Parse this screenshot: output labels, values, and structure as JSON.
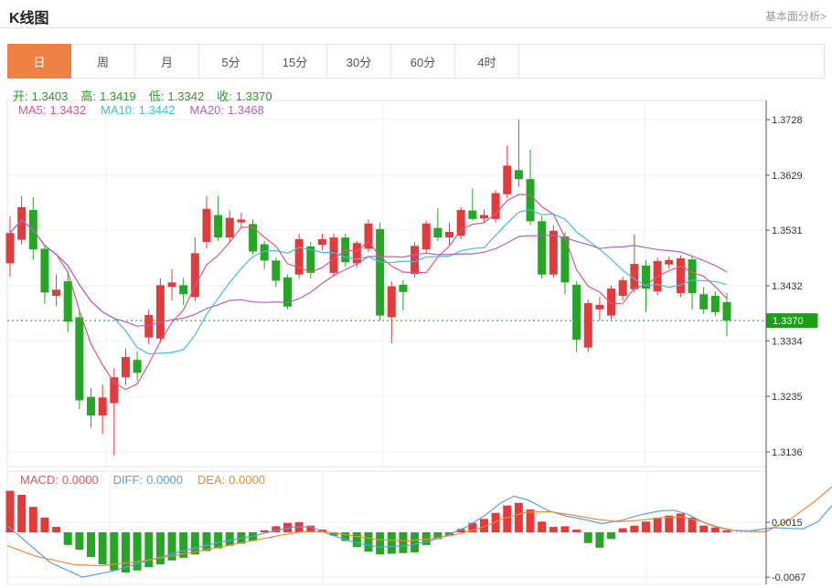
{
  "header": {
    "title": "K线图",
    "link": "基本面分析>"
  },
  "tabs": {
    "items": [
      {
        "key": "day",
        "label": "日",
        "selected": true
      },
      {
        "key": "week",
        "label": "周",
        "selected": false
      },
      {
        "key": "month",
        "label": "月",
        "selected": false
      },
      {
        "key": "5min",
        "label": "5分",
        "selected": false
      },
      {
        "key": "15min",
        "label": "15分",
        "selected": false
      },
      {
        "key": "30min",
        "label": "30分",
        "selected": false
      },
      {
        "key": "60min",
        "label": "60分",
        "selected": false
      },
      {
        "key": "4hour",
        "label": "4时",
        "selected": false
      }
    ]
  },
  "info": {
    "open_label": "开:",
    "open": "1.3403",
    "high_label": "高:",
    "high": "1.3419",
    "low_label": "低:",
    "low": "1.3342",
    "close_label": "收:",
    "close": "1.3370",
    "ma5_label": "MA5:",
    "ma5": "1.3432",
    "ma10_label": "MA10:",
    "ma10": "1.3442",
    "ma20_label": "MA20:",
    "ma20": "1.3468"
  },
  "macd_info": {
    "macd_label": "MACD:",
    "macd": "0.0000",
    "diff_label": "DIFF:",
    "diff": "0.0000",
    "dea_label": "DEA:",
    "dea": "0.0000"
  },
  "colors": {
    "up": "#e23b3b",
    "down": "#26a526",
    "ohlc_text": "#21a21f",
    "ma5": "#e8527d",
    "ma10": "#3fc0d8",
    "ma20": "#b25fc8",
    "macd_text": "#e25650",
    "diff": "#5aa0e0",
    "dea": "#f0882f",
    "accent": "#ee8144",
    "badge": "#18a018",
    "grid": "#efefef",
    "axis": "#555555",
    "label": "#333333",
    "dotted_zero": "#a8cce8"
  },
  "chart_data": {
    "type": "candlestick",
    "title": "K线图",
    "y_ticks": [
      "1.3728",
      "1.3629",
      "1.3531",
      "1.3432",
      "1.3334",
      "1.3235",
      "1.3136"
    ],
    "y_range": [
      1.3136,
      1.3728
    ],
    "current_price": "1.3370",
    "grid": true,
    "candles": [
      [
        1.3472,
        1.3556,
        1.3448,
        1.3526
      ],
      [
        1.3514,
        1.3592,
        1.3505,
        1.3572
      ],
      [
        1.3567,
        1.359,
        1.3478,
        1.3497
      ],
      [
        1.3498,
        1.3505,
        1.34,
        1.342
      ],
      [
        1.3414,
        1.3452,
        1.3396,
        1.3425
      ],
      [
        1.344,
        1.3458,
        1.335,
        1.3368
      ],
      [
        1.3376,
        1.339,
        1.3212,
        1.3228
      ],
      [
        1.3234,
        1.325,
        1.3179,
        1.3201
      ],
      [
        1.3201,
        1.3256,
        1.3168,
        1.3233
      ],
      [
        1.3223,
        1.3285,
        1.313,
        1.3269
      ],
      [
        1.3269,
        1.332,
        1.3255,
        1.3305
      ],
      [
        1.33,
        1.3315,
        1.3262,
        1.3277
      ],
      [
        1.334,
        1.339,
        1.3328,
        1.338
      ],
      [
        1.3338,
        1.3445,
        1.333,
        1.3433
      ],
      [
        1.343,
        1.3462,
        1.3406,
        1.3438
      ],
      [
        1.3433,
        1.3446,
        1.3398,
        1.3417
      ],
      [
        1.3412,
        1.3518,
        1.3404,
        1.349
      ],
      [
        1.351,
        1.3592,
        1.3498,
        1.3569
      ],
      [
        1.3558,
        1.3592,
        1.3512,
        1.3518
      ],
      [
        1.3518,
        1.3566,
        1.351,
        1.3553
      ],
      [
        1.3545,
        1.3562,
        1.3536,
        1.355
      ],
      [
        1.3542,
        1.355,
        1.3488,
        1.3493
      ],
      [
        1.3506,
        1.3512,
        1.3462,
        1.3477
      ],
      [
        1.3477,
        1.3482,
        1.343,
        1.3441
      ],
      [
        1.3447,
        1.3452,
        1.339,
        1.3395
      ],
      [
        1.3452,
        1.3525,
        1.3445,
        1.3515
      ],
      [
        1.3502,
        1.351,
        1.3445,
        1.3455
      ],
      [
        1.3505,
        1.3525,
        1.3495,
        1.3515
      ],
      [
        1.3455,
        1.3525,
        1.3448,
        1.3518
      ],
      [
        1.3518,
        1.3525,
        1.3466,
        1.3474
      ],
      [
        1.3472,
        1.3512,
        1.3465,
        1.3508
      ],
      [
        1.3498,
        1.355,
        1.3492,
        1.3543
      ],
      [
        1.3533,
        1.3545,
        1.337,
        1.3379
      ],
      [
        1.3376,
        1.344,
        1.333,
        1.3431
      ],
      [
        1.3434,
        1.3442,
        1.3388,
        1.3421
      ],
      [
        1.3453,
        1.351,
        1.3446,
        1.3503
      ],
      [
        1.3497,
        1.3548,
        1.349,
        1.3543
      ],
      [
        1.3535,
        1.357,
        1.3512,
        1.3518
      ],
      [
        1.3518,
        1.3545,
        1.3505,
        1.3528
      ],
      [
        1.3521,
        1.3572,
        1.3515,
        1.3567
      ],
      [
        1.3566,
        1.3605,
        1.3548,
        1.3551
      ],
      [
        1.3552,
        1.3568,
        1.3545,
        1.3558
      ],
      [
        1.3551,
        1.3602,
        1.3545,
        1.3597
      ],
      [
        1.3595,
        1.3682,
        1.3588,
        1.3646
      ],
      [
        1.3638,
        1.3728,
        1.3608,
        1.3622
      ],
      [
        1.3622,
        1.3675,
        1.354,
        1.3547
      ],
      [
        1.3547,
        1.3556,
        1.3445,
        1.3452
      ],
      [
        1.3452,
        1.354,
        1.3446,
        1.353
      ],
      [
        1.352,
        1.3528,
        1.3417,
        1.3438
      ],
      [
        1.3434,
        1.344,
        1.3314,
        1.3336
      ],
      [
        1.3322,
        1.3408,
        1.3314,
        1.3401
      ],
      [
        1.339,
        1.3412,
        1.337,
        1.3398
      ],
      [
        1.3379,
        1.3432,
        1.3372,
        1.3427
      ],
      [
        1.3414,
        1.3448,
        1.3406,
        1.3442
      ],
      [
        1.3426,
        1.3523,
        1.342,
        1.3471
      ],
      [
        1.3468,
        1.3478,
        1.3385,
        1.3427
      ],
      [
        1.3422,
        1.3482,
        1.3415,
        1.3476
      ],
      [
        1.347,
        1.3484,
        1.3462,
        1.3478
      ],
      [
        1.3419,
        1.3486,
        1.3412,
        1.3481
      ],
      [
        1.3479,
        1.3485,
        1.339,
        1.3419
      ],
      [
        1.3417,
        1.343,
        1.3382,
        1.339
      ],
      [
        1.3414,
        1.3422,
        1.3378,
        1.3385
      ],
      [
        1.3403,
        1.3419,
        1.3342,
        1.337
      ]
    ],
    "ma_periods": [
      5,
      10,
      20
    ],
    "macd": {
      "y_ticks": [
        "0.0015",
        "-0.0067"
      ],
      "bars": [
        0.0062,
        0.0056,
        0.0038,
        0.0022,
        0.0008,
        -0.0019,
        -0.0026,
        -0.0037,
        -0.0048,
        -0.0057,
        -0.006,
        -0.0057,
        -0.0052,
        -0.0048,
        -0.0042,
        -0.0038,
        -0.0033,
        -0.0028,
        -0.0024,
        -0.002,
        -0.0017,
        -0.0013,
        0.0003,
        0.0009,
        0.0014,
        0.0015,
        0.001,
        0.0004,
        -0.0005,
        -0.0013,
        -0.0022,
        -0.0029,
        -0.0033,
        -0.0032,
        -0.0031,
        -0.003,
        -0.0019,
        -0.001,
        -0.0005,
        0.0005,
        0.0014,
        0.002,
        0.0029,
        0.004,
        0.0044,
        0.0034,
        0.0016,
        0.0008,
        0.0009,
        0.0004,
        -0.0016,
        -0.0023,
        -0.001,
        0.0006,
        0.001,
        0.0016,
        0.0022,
        0.0025,
        0.0028,
        0.0022,
        0.001,
        0.0007,
        0.0003
      ],
      "diff_line": [
        [
          8,
          0.001
        ],
        [
          25,
          -0.001
        ],
        [
          55,
          -0.0045
        ],
        [
          90,
          -0.0067
        ],
        [
          120,
          -0.0059
        ],
        [
          160,
          -0.0043
        ],
        [
          200,
          -0.0028
        ],
        [
          240,
          -0.0015
        ],
        [
          275,
          -0.0006
        ],
        [
          300,
          0.0002
        ],
        [
          322,
          0.0008
        ],
        [
          340,
          0.0008
        ],
        [
          360,
          -0.0003
        ],
        [
          390,
          -0.0016
        ],
        [
          415,
          -0.0022
        ],
        [
          445,
          -0.002
        ],
        [
          470,
          -0.0013
        ],
        [
          490,
          -0.0004
        ],
        [
          510,
          0.0008
        ],
        [
          530,
          0.0025
        ],
        [
          548,
          0.0044
        ],
        [
          562,
          0.0054
        ],
        [
          578,
          0.0048
        ],
        [
          600,
          0.0032
        ],
        [
          620,
          0.0024
        ],
        [
          640,
          0.0019
        ],
        [
          658,
          0.0013
        ],
        [
          680,
          0.0018
        ],
        [
          700,
          0.0026
        ],
        [
          722,
          0.0032
        ],
        [
          737,
          0.0033
        ],
        [
          752,
          0.0027
        ],
        [
          768,
          0.0016
        ],
        [
          782,
          0.0008
        ],
        [
          800,
          0.0003
        ],
        [
          820,
          0.0002
        ],
        [
          845,
          0.0007
        ],
        [
          878,
          0.0005
        ],
        [
          895,
          0.0016
        ],
        [
          910,
          0.004
        ]
      ],
      "dea_line": [
        [
          8,
          -0.002
        ],
        [
          40,
          -0.0036
        ],
        [
          80,
          -0.0048
        ],
        [
          110,
          -0.005
        ],
        [
          150,
          -0.0044
        ],
        [
          190,
          -0.0035
        ],
        [
          230,
          -0.0025
        ],
        [
          270,
          -0.0014
        ],
        [
          305,
          -0.0005
        ],
        [
          330,
          0.0001
        ],
        [
          355,
          0.0001
        ],
        [
          385,
          -0.0005
        ],
        [
          415,
          -0.0011
        ],
        [
          445,
          -0.0013
        ],
        [
          475,
          -0.0009
        ],
        [
          500,
          -0.0003
        ],
        [
          525,
          0.0006
        ],
        [
          550,
          0.002
        ],
        [
          575,
          0.003
        ],
        [
          600,
          0.0031
        ],
        [
          625,
          0.0026
        ],
        [
          650,
          0.002
        ],
        [
          675,
          0.0016
        ],
        [
          700,
          0.0018
        ],
        [
          725,
          0.0022
        ],
        [
          745,
          0.0023
        ],
        [
          765,
          0.0017
        ],
        [
          785,
          0.0008
        ],
        [
          805,
          0.0002
        ],
        [
          838,
          0.0001
        ],
        [
          865,
          0.002
        ],
        [
          890,
          0.0045
        ],
        [
          910,
          0.0068
        ]
      ]
    }
  }
}
